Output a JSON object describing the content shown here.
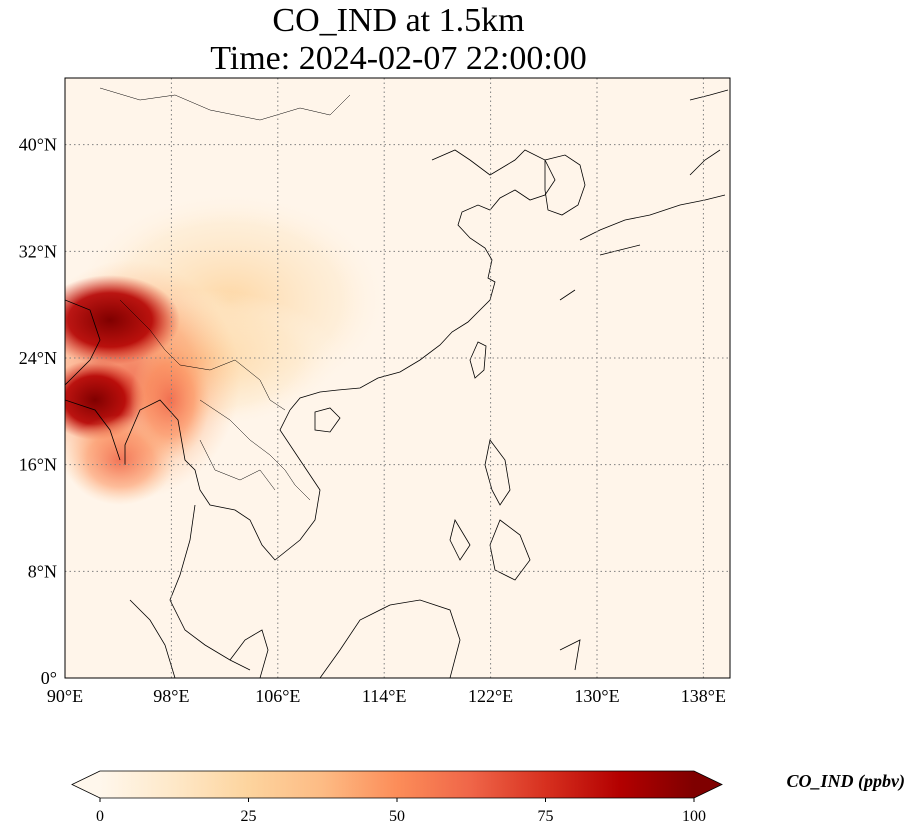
{
  "title": {
    "line1": "CO_IND at 1.5km",
    "line2": "Time: 2024-02-07 22:00:00"
  },
  "map": {
    "extent": {
      "lon": [
        90,
        140
      ],
      "lat": [
        0,
        45
      ]
    },
    "lon_ticks": [
      {
        "value": 90,
        "label": "90°E"
      },
      {
        "value": 98,
        "label": "98°E"
      },
      {
        "value": 106,
        "label": "106°E"
      },
      {
        "value": 114,
        "label": "114°E"
      },
      {
        "value": 122,
        "label": "122°E"
      },
      {
        "value": 130,
        "label": "130°E"
      },
      {
        "value": 138,
        "label": "138°E"
      }
    ],
    "lat_ticks": [
      {
        "value": 0,
        "label": "0°"
      },
      {
        "value": 8,
        "label": "8°N"
      },
      {
        "value": 16,
        "label": "16°N"
      },
      {
        "value": 24,
        "label": "24°N"
      },
      {
        "value": 32,
        "label": "32°N"
      },
      {
        "value": 40,
        "label": "40°N"
      }
    ],
    "gridlines": "dotted gray"
  },
  "colorbar": {
    "label": "CO_IND (ppbv)",
    "colormap": "OrRd",
    "range": [
      0,
      100
    ],
    "extend": "both",
    "ticks": [
      {
        "value": 0,
        "label": "0"
      },
      {
        "value": 25,
        "label": "25"
      },
      {
        "value": 50,
        "label": "50"
      },
      {
        "value": 75,
        "label": "75"
      },
      {
        "value": 100,
        "label": "100"
      }
    ],
    "colors": [
      "#fff7ec",
      "#fee8c8",
      "#fdd49e",
      "#fdbb84",
      "#fc8d59",
      "#ef6548",
      "#d7301f",
      "#b30000",
      "#7f0000"
    ]
  }
}
